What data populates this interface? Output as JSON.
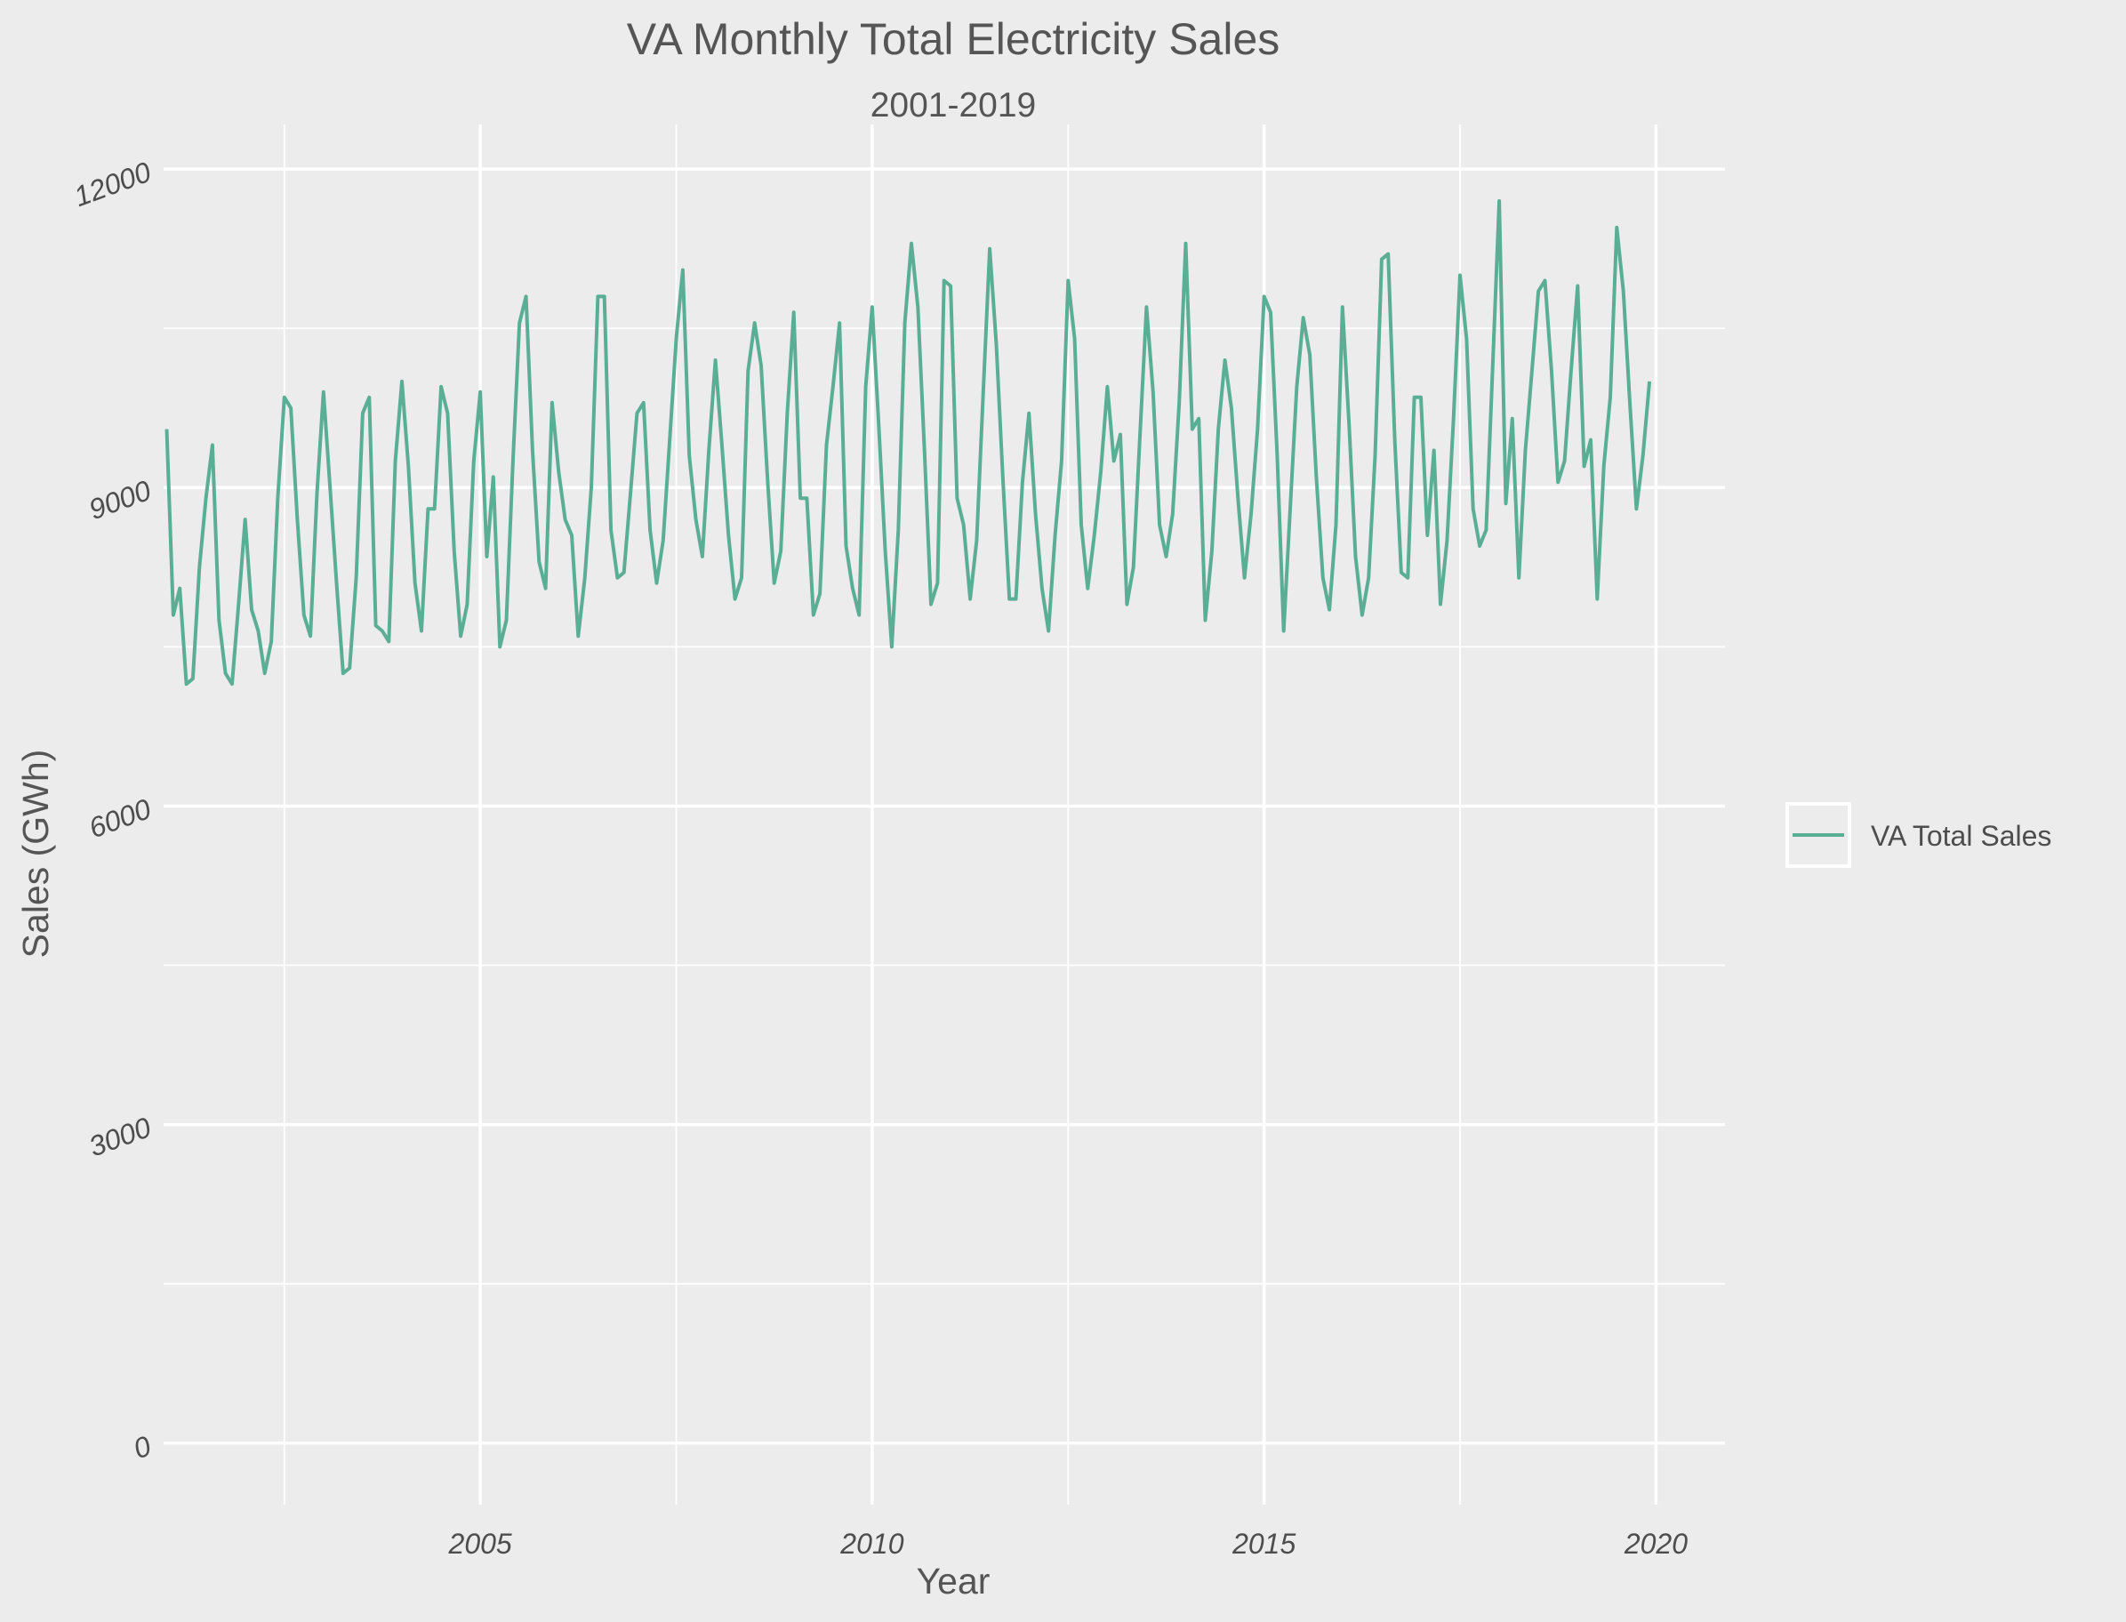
{
  "chart_data": {
    "type": "line",
    "title": "VA Monthly Total Electricity Sales",
    "subtitle": "2001-2019",
    "xlabel": "Year",
    "ylabel": "Sales (GWh)",
    "x_ticks": [
      "2005",
      "2010",
      "2015",
      "2020"
    ],
    "y_ticks": [
      "0",
      "3000",
      "6000",
      "9000",
      "12000"
    ],
    "xlim": [
      2000.96,
      2020.88
    ],
    "ylim": [
      -580,
      12420
    ],
    "grid": true,
    "legend_position": "right",
    "series": [
      {
        "name": "VA Total Sales",
        "color": "#5aae94",
        "start_year": 2001,
        "start_month": 1,
        "values": [
          9550,
          7800,
          8050,
          7150,
          7200,
          8250,
          8900,
          9400,
          7750,
          7250,
          7150,
          7900,
          8700,
          7850,
          7650,
          7250,
          7550,
          8900,
          9850,
          9750,
          8700,
          7800,
          7600,
          8950,
          9900,
          9000,
          8100,
          7250,
          7300,
          8150,
          9700,
          9850,
          7700,
          7650,
          7550,
          9250,
          10000,
          9200,
          8100,
          7650,
          8800,
          8800,
          9950,
          9700,
          8400,
          7600,
          7900,
          9250,
          9900,
          8350,
          9100,
          7500,
          7750,
          9250,
          10550,
          10800,
          9350,
          8300,
          8050,
          9800,
          9150,
          8700,
          8550,
          7600,
          8150,
          9000,
          10800,
          10800,
          8600,
          8150,
          8200,
          8950,
          9700,
          9800,
          8600,
          8100,
          8500,
          9450,
          10400,
          11050,
          9300,
          8700,
          8350,
          9350,
          10200,
          9400,
          8550,
          7950,
          8150,
          10100,
          10550,
          10150,
          9050,
          8100,
          8400,
          9700,
          10650,
          8900,
          8900,
          7800,
          8000,
          9400,
          9950,
          10550,
          8450,
          8050,
          7800,
          9950,
          10700,
          9600,
          8400,
          7500,
          8600,
          10550,
          11300,
          10700,
          9350,
          7900,
          8100,
          10950,
          10900,
          8900,
          8650,
          7950,
          8500,
          9900,
          11250,
          10350,
          9100,
          7950,
          7950,
          9050,
          9700,
          8750,
          8050,
          7650,
          8550,
          9250,
          10950,
          10400,
          8650,
          8050,
          8550,
          9150,
          9950,
          9250,
          9500,
          7900,
          8250,
          9500,
          10700,
          9900,
          8650,
          8350,
          8750,
          9800,
          11300,
          9550,
          9650,
          7750,
          8400,
          9550,
          10200,
          9750,
          8900,
          8150,
          8750,
          9550,
          10800,
          10650,
          9300,
          7650,
          8800,
          9950,
          10600,
          10250,
          9100,
          8150,
          7850,
          8650,
          10700,
          9600,
          8350,
          7800,
          8150,
          9300,
          11150,
          11200,
          9450,
          8200,
          8150,
          9850,
          9850,
          8550,
          9350,
          7900,
          8500,
          9650,
          11000,
          10400,
          8800,
          8450,
          8600,
          10150,
          11700,
          8850,
          9650,
          8150,
          9350,
          10100,
          10850,
          10950,
          10100,
          9050,
          9250,
          10100,
          10900,
          9200,
          9450,
          7950,
          9200,
          9850,
          11450,
          10850,
          9800,
          8800,
          9300,
          10000
        ]
      }
    ]
  }
}
